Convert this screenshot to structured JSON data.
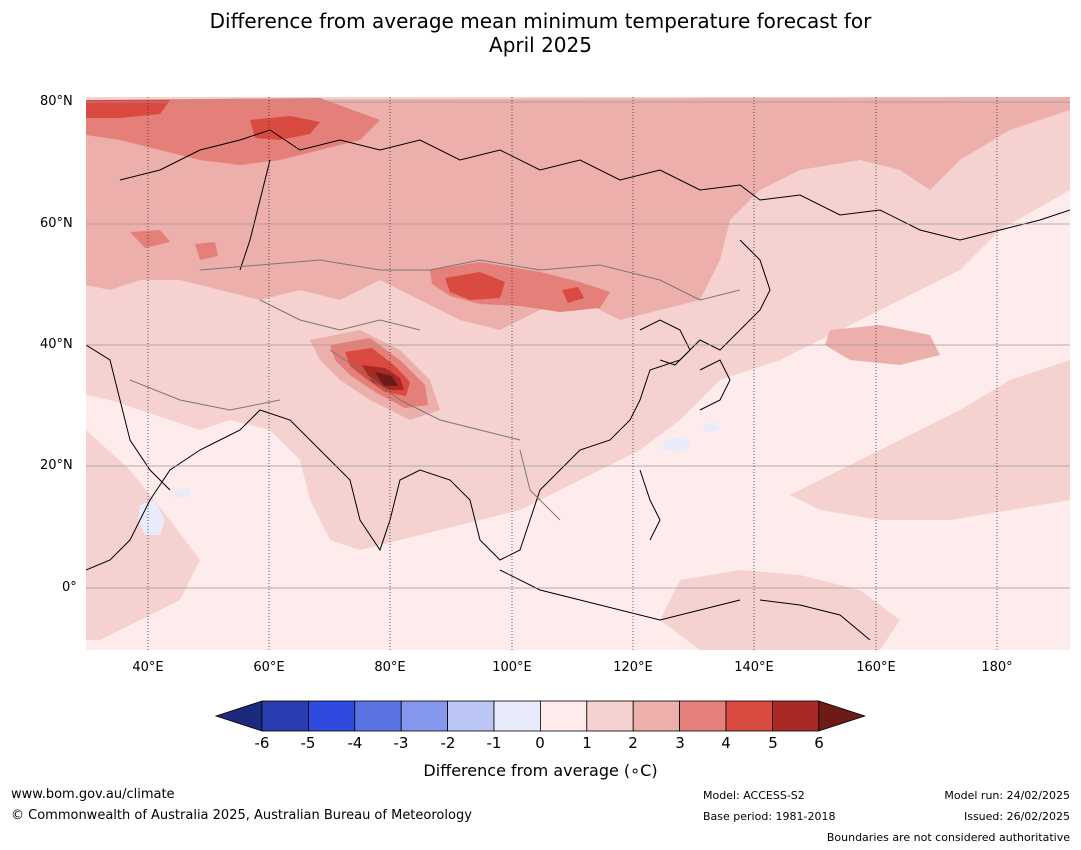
{
  "title_line1": "Difference from average mean minimum temperature forecast for",
  "title_line2": "April 2025",
  "lat_labels": [
    "80°N",
    "60°N",
    "40°N",
    "20°N",
    "0°"
  ],
  "lon_labels": [
    "40°E",
    "60°E",
    "80°E",
    "100°E",
    "120°E",
    "140°E",
    "160°E",
    "180°"
  ],
  "colorbar": {
    "label": "Difference from average (∘C)",
    "ticks": [
      "-6",
      "-5",
      "-4",
      "-3",
      "-2",
      "-1",
      "0",
      "1",
      "2",
      "3",
      "4",
      "5",
      "6"
    ],
    "colors": [
      "#1c2a7e",
      "#2a3db0",
      "#2f4bde",
      "#5b74e4",
      "#8497ec",
      "#bcc6f4",
      "#e8ebfa",
      "#fdeceb",
      "#f5d2cf",
      "#ecafab",
      "#e57f79",
      "#d94a41",
      "#a92a24",
      "#6e1a16"
    ]
  },
  "footer": {
    "website": "www.bom.gov.au/climate",
    "copyright": "© Commonwealth of Australia 2025, Australian Bureau of Meteorology",
    "model": "Model: ACCESS-S2",
    "base_period": "Base period: 1981-2018",
    "model_run": "Model run: 24/02/2025",
    "issued": "Issued: 26/02/2025",
    "disclaimer": "Boundaries are not considered authoritative"
  }
}
